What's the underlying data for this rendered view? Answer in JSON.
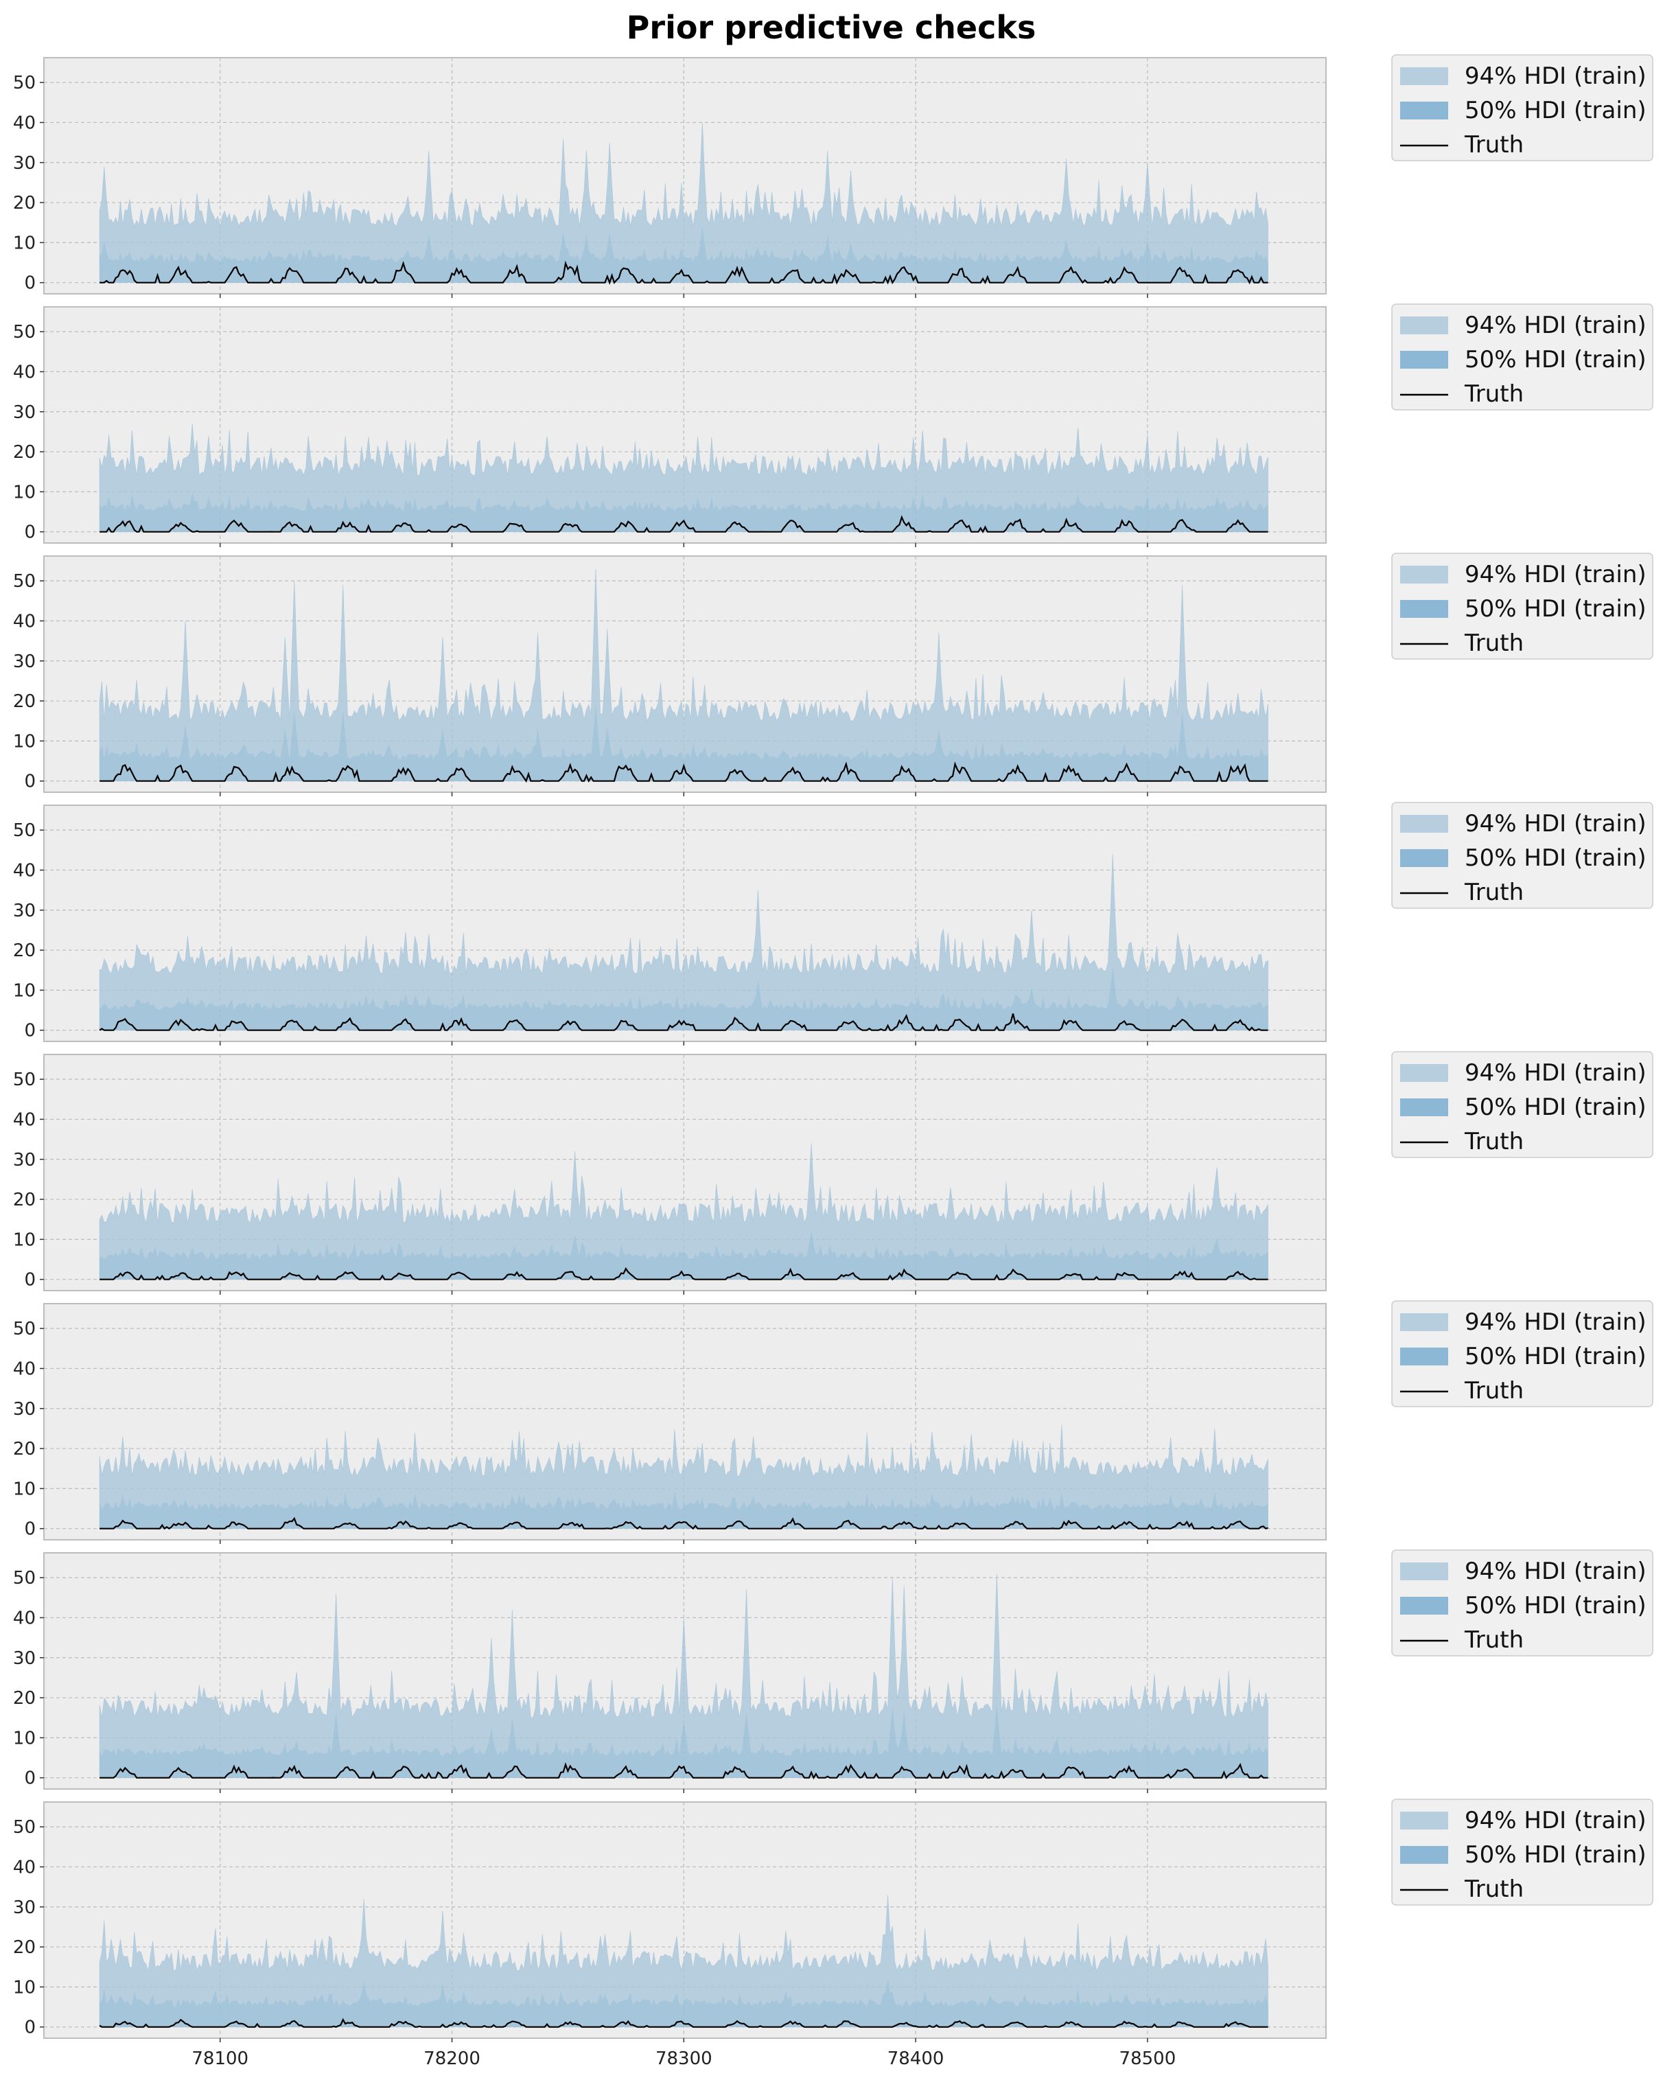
{
  "chart_data": {
    "type": "area",
    "title": "Prior predictive checks",
    "xlabel": "",
    "ylabel": "",
    "xlim": [
      78024,
      78577
    ],
    "ylim": [
      -2.8,
      56.2
    ],
    "x_range": [
      78048,
      78552
    ],
    "xticks": [
      78100,
      78200,
      78300,
      78400,
      78500
    ],
    "yticks": [
      0,
      10,
      20,
      30,
      40,
      50
    ],
    "grid": true,
    "legend_position": "outside-right",
    "legend": [
      {
        "label": "94% HDI (train)",
        "kind": "band",
        "color": "#A7C6DA"
      },
      {
        "label": "50% HDI (train)",
        "kind": "band",
        "color": "#86B4D3"
      },
      {
        "label": "Truth",
        "kind": "line",
        "color": "#000000"
      }
    ],
    "colors": {
      "hdi94": "#A7C6DA",
      "hdi50": "#86B4D3",
      "truth": "#000000",
      "panel_bg": "#EDEDED",
      "grid": "#BBBBBB"
    },
    "panels": [
      {
        "id": 1,
        "hdi94_baseline": 16,
        "hdi94_peaks": [
          {
            "x": 78050,
            "y": 29
          },
          {
            "x": 78190,
            "y": 33
          },
          {
            "x": 78248,
            "y": 36
          },
          {
            "x": 78258,
            "y": 33
          },
          {
            "x": 78268,
            "y": 35
          },
          {
            "x": 78308,
            "y": 40
          },
          {
            "x": 78362,
            "y": 33
          },
          {
            "x": 78372,
            "y": 28
          },
          {
            "x": 78465,
            "y": 31
          },
          {
            "x": 78500,
            "y": 30
          }
        ],
        "truth_peak": 4
      },
      {
        "id": 2,
        "hdi94_baseline": 16,
        "hdi94_peaks": [
          {
            "x": 78088,
            "y": 27
          },
          {
            "x": 78095,
            "y": 24
          },
          {
            "x": 78470,
            "y": 26
          },
          {
            "x": 78480,
            "y": 22
          }
        ],
        "truth_peak": 3
      },
      {
        "id": 3,
        "hdi94_baseline": 17,
        "hdi94_peaks": [
          {
            "x": 78085,
            "y": 40
          },
          {
            "x": 78132,
            "y": 50
          },
          {
            "x": 78128,
            "y": 36
          },
          {
            "x": 78153,
            "y": 49
          },
          {
            "x": 78196,
            "y": 36
          },
          {
            "x": 78237,
            "y": 37
          },
          {
            "x": 78262,
            "y": 53
          },
          {
            "x": 78267,
            "y": 38
          },
          {
            "x": 78410,
            "y": 37
          },
          {
            "x": 78515,
            "y": 49
          }
        ],
        "truth_peak": 4
      },
      {
        "id": 4,
        "hdi94_baseline": 16,
        "hdi94_peaks": [
          {
            "x": 78190,
            "y": 24
          },
          {
            "x": 78332,
            "y": 35
          },
          {
            "x": 78450,
            "y": 30
          },
          {
            "x": 78485,
            "y": 44
          }
        ],
        "truth_peak": 3
      },
      {
        "id": 5,
        "hdi94_baseline": 16,
        "hdi94_peaks": [
          {
            "x": 78253,
            "y": 32
          },
          {
            "x": 78355,
            "y": 34
          },
          {
            "x": 78530,
            "y": 28
          }
        ],
        "truth_peak": 2
      },
      {
        "id": 6,
        "hdi94_baseline": 15,
        "hdi94_peaks": [
          {
            "x": 78330,
            "y": 23
          },
          {
            "x": 78250,
            "y": 21
          }
        ],
        "truth_peak": 2
      },
      {
        "id": 7,
        "hdi94_baseline": 17,
        "hdi94_peaks": [
          {
            "x": 78150,
            "y": 46
          },
          {
            "x": 78217,
            "y": 35
          },
          {
            "x": 78226,
            "y": 42
          },
          {
            "x": 78300,
            "y": 40
          },
          {
            "x": 78327,
            "y": 47
          },
          {
            "x": 78390,
            "y": 50
          },
          {
            "x": 78395,
            "y": 48
          },
          {
            "x": 78435,
            "y": 51
          }
        ],
        "truth_peak": 3
      },
      {
        "id": 8,
        "hdi94_baseline": 16,
        "hdi94_peaks": [
          {
            "x": 78162,
            "y": 32
          },
          {
            "x": 78196,
            "y": 29
          },
          {
            "x": 78388,
            "y": 33
          }
        ],
        "truth_peak": 1.5
      }
    ]
  }
}
